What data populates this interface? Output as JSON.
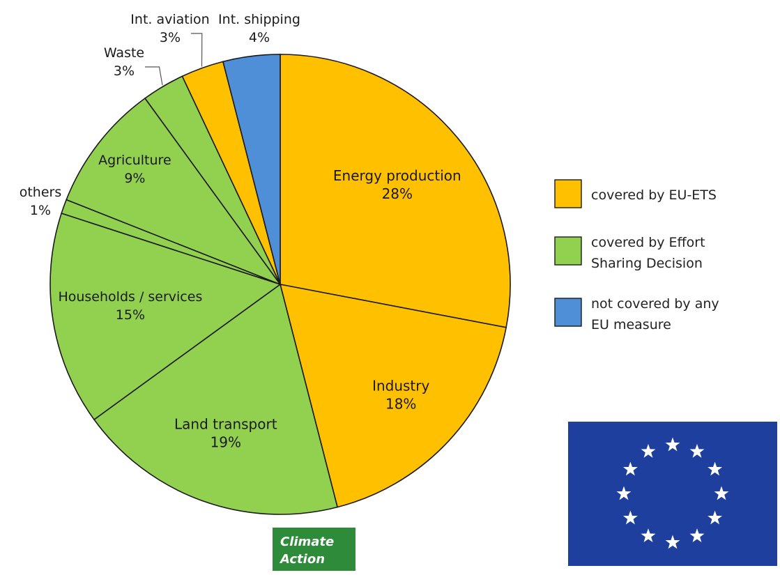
{
  "chart_data": {
    "type": "pie",
    "slices": [
      {
        "label": "Energy production",
        "pct_label": "28%",
        "value": 28,
        "group": "ets"
      },
      {
        "label": "Industry",
        "pct_label": "18%",
        "value": 18,
        "group": "ets"
      },
      {
        "label": "Land transport",
        "pct_label": "19%",
        "value": 19,
        "group": "esd"
      },
      {
        "label": "Households / services",
        "pct_label": "15%",
        "value": 15,
        "group": "esd"
      },
      {
        "label": "others",
        "pct_label": "1%",
        "value": 1,
        "group": "esd"
      },
      {
        "label": "Agriculture",
        "pct_label": "9%",
        "value": 9,
        "group": "esd"
      },
      {
        "label": "Waste",
        "pct_label": "3%",
        "value": 3,
        "group": "esd"
      },
      {
        "label": "Int. aviation",
        "pct_label": "3%",
        "value": 3,
        "group": "ets"
      },
      {
        "label": "Int. shipping",
        "pct_label": "4%",
        "value": 4,
        "group": "none"
      }
    ],
    "legend": [
      {
        "group": "ets",
        "lines": [
          "covered by EU-ETS"
        ]
      },
      {
        "group": "esd",
        "lines": [
          "covered by Effort",
          "Sharing Decision"
        ]
      },
      {
        "group": "none",
        "lines": [
          "not covered by any",
          "EU measure"
        ]
      }
    ],
    "legend_position": "right",
    "colors": {
      "ets": "#ffc000",
      "esd": "#92d050",
      "none": "#4f8fd8",
      "outline": "#1a1a1a"
    }
  },
  "badge": {
    "lines": [
      "Climate",
      "Action"
    ],
    "color": "#2e8b3a"
  },
  "eu_flag": {
    "background": "#1f3f9e",
    "star_color": "#ffffff",
    "star_count": 12
  }
}
